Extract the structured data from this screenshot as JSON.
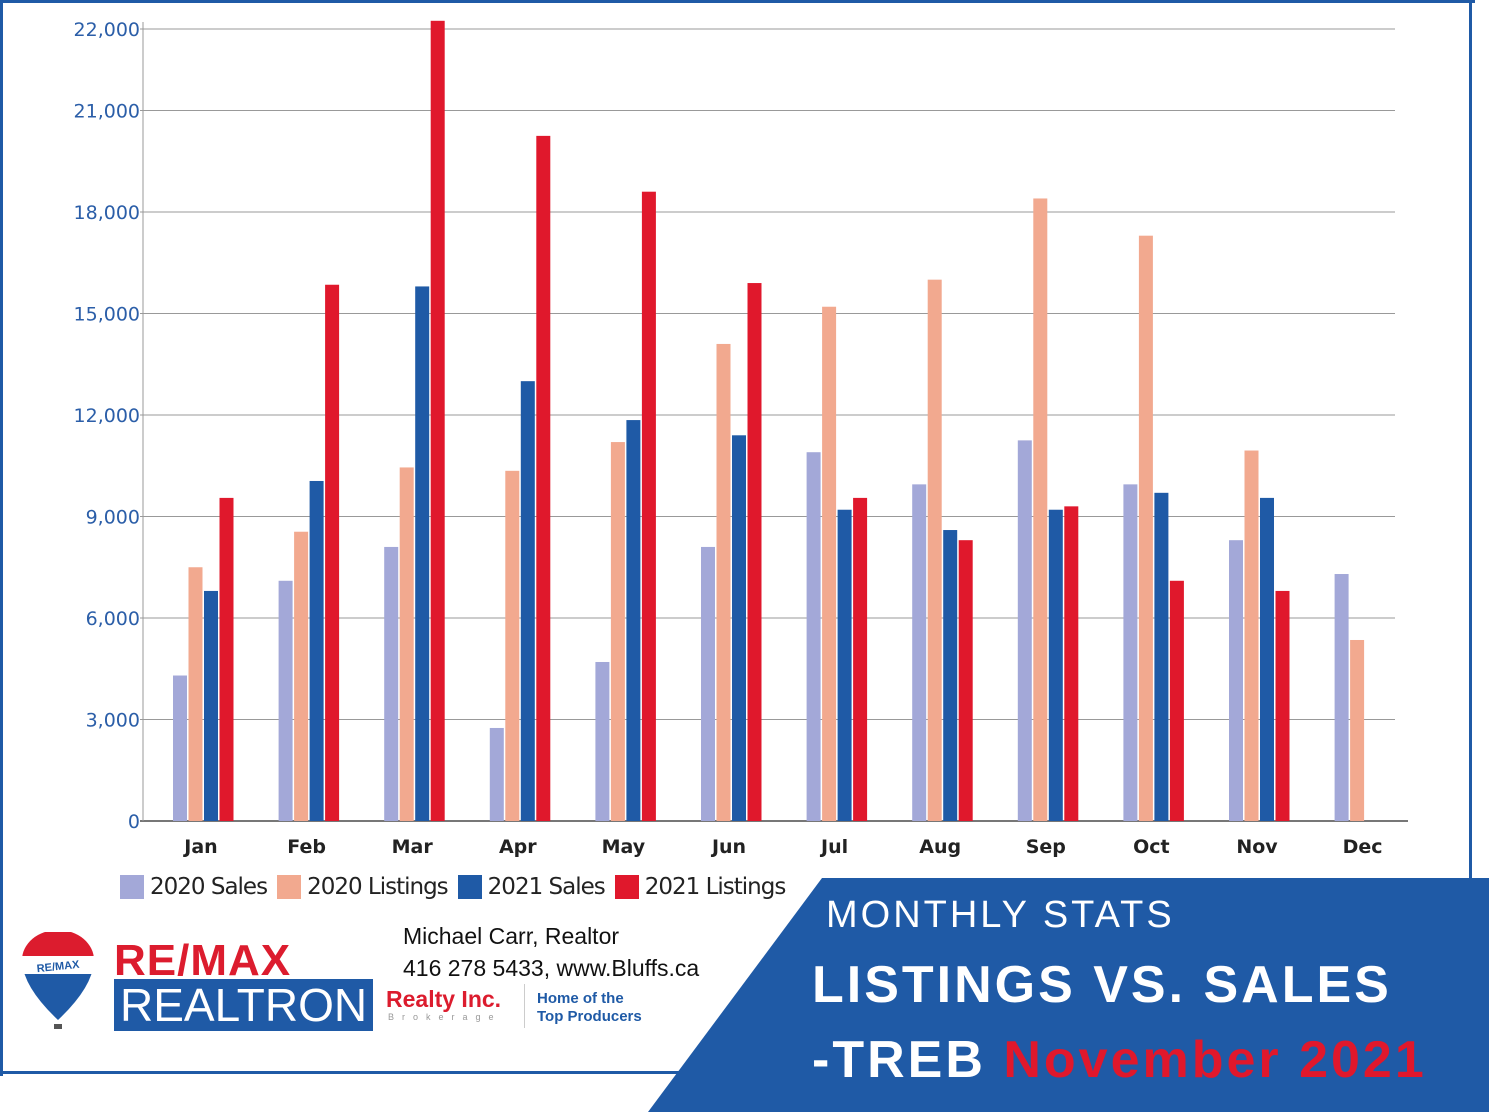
{
  "chart_data": {
    "type": "bar",
    "title": "",
    "xlabel": "",
    "ylabel": "",
    "categories": [
      "Jan",
      "Feb",
      "Mar",
      "Apr",
      "May",
      "Jun",
      "Jul",
      "Aug",
      "Sep",
      "Oct",
      "Nov",
      "Dec"
    ],
    "yticks": [
      "0",
      "3,000",
      "6,000",
      "9,000",
      "12,000",
      "15,000",
      "18,000",
      "21,000",
      "22,000"
    ],
    "ytick_values": [
      0,
      3000,
      6000,
      9000,
      12000,
      15000,
      18000,
      21000,
      22000
    ],
    "ylim": [
      0,
      22000
    ],
    "grid": true,
    "legend_position": "bottom-left",
    "series": [
      {
        "name": "2020 Sales",
        "color": "#a3a8d8",
        "values": [
          4300,
          7100,
          8100,
          2750,
          4700,
          8100,
          10900,
          9950,
          11250,
          9950,
          8300,
          7300
        ]
      },
      {
        "name": "2020 Listings",
        "color": "#f2a98f",
        "values": [
          7500,
          8550,
          10450,
          10350,
          11200,
          14100,
          15200,
          16000,
          18400,
          17300,
          10950,
          5350
        ]
      },
      {
        "name": "2021 Sales",
        "color": "#1f5aa6",
        "values": [
          6800,
          10050,
          15800,
          13000,
          11850,
          11400,
          9200,
          8600,
          9200,
          9700,
          9550,
          null
        ]
      },
      {
        "name": "2021 Listings",
        "color": "#e0182c",
        "values": [
          9550,
          15850,
          22100,
          20250,
          18600,
          15900,
          9550,
          8300,
          9300,
          7100,
          6800,
          null
        ]
      }
    ]
  },
  "contact": {
    "line1": "Michael Carr, Realtor",
    "line2": "416 278 5433, www.Bluffs.ca"
  },
  "brand": {
    "remax": "RE/MAX",
    "realtron": "REALTRON",
    "realty": "Realty Inc.",
    "brokerage": "Brokerage",
    "tagline1": "Home of the",
    "tagline2": "Top Producers",
    "balloon": "RE/MAX"
  },
  "banner": {
    "line1": "MONTHLY STATS",
    "line2": "LISTINGS VS. SALES",
    "line3a": "-TREB",
    "line3b": "November 2021",
    "color": "#1f5aa6"
  }
}
